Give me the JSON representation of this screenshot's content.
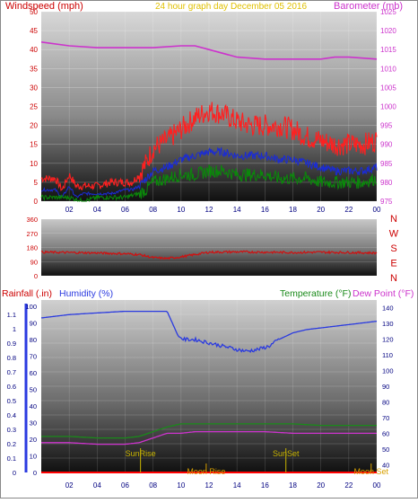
{
  "header": {
    "left_title": "Windspeed (mph)",
    "center_title": "24 hour graph day   December 05 2016",
    "right_title": "Barometer (mb)"
  },
  "labels_bottom": {
    "rainfall": "Rainfall (.in)",
    "humidity": "Humidity (%)",
    "temperature": "Temperature (°F)",
    "dewpoint": "Dew Point (°F)"
  },
  "colors": {
    "windspeed": "#ff2020",
    "windavg": "#1a2bd6",
    "windlow": "#0a8a0a",
    "barometer": "#cc33cc",
    "direction": "#d01010",
    "humidity": "#2a3ae0",
    "temperature": "#1a8a1a",
    "dewpoint": "#cc33cc",
    "rain": "#ff0000",
    "sun": "#c8b400",
    "moon": "#d8a000",
    "title_yellow": "#e0c000",
    "left_axis_red": "#cc0000",
    "right_axis_magenta": "#cc33cc"
  },
  "chart_data": [
    {
      "type": "line",
      "name_hint": "wind-barometer",
      "x_ticks": [
        "02",
        "04",
        "06",
        "08",
        "10",
        "12",
        "14",
        "16",
        "18",
        "20",
        "22",
        "00"
      ],
      "y_left_ticks": [
        "0",
        "5",
        "10",
        "15",
        "20",
        "25",
        "30",
        "35",
        "40",
        "45",
        "50"
      ],
      "y_right_ticks": [
        "975",
        "980",
        "985",
        "990",
        "995",
        "1000",
        "1005",
        "1010",
        "1015",
        "1020",
        "1025"
      ],
      "ylim_left": [
        0,
        50
      ],
      "ylim_right": [
        975,
        1025
      ],
      "xlim": [
        0,
        24
      ],
      "series": [
        {
          "name": "Windspeed (mph)",
          "key": "windspeed",
          "axis": "left",
          "x": [
            0,
            1,
            1.5,
            2,
            2.5,
            3,
            4,
            5,
            6,
            6.5,
            7,
            7.5,
            8,
            9,
            10,
            11,
            12,
            13,
            14,
            15,
            16,
            17,
            18,
            19,
            20,
            21,
            22,
            23,
            24
          ],
          "y": [
            6,
            6,
            3,
            7,
            4,
            4,
            4,
            5,
            5,
            5,
            7,
            10,
            14,
            16,
            19,
            22,
            24,
            23,
            21,
            20,
            20,
            20,
            19,
            17,
            16,
            15,
            15,
            15,
            16
          ]
        },
        {
          "name": "Wind average",
          "key": "windavg",
          "axis": "left",
          "x": [
            0,
            1,
            1.5,
            2,
            2.5,
            3,
            4,
            5,
            6,
            6.5,
            7,
            7.5,
            8,
            9,
            10,
            11,
            12,
            13,
            14,
            15,
            16,
            17,
            18,
            19,
            20,
            21,
            22,
            23,
            24
          ],
          "y": [
            3,
            3,
            1,
            4,
            1,
            2,
            2,
            2,
            3,
            3,
            4,
            6,
            8,
            9,
            11,
            12,
            13,
            13,
            12,
            12,
            12,
            11,
            11,
            10,
            9,
            8,
            8,
            8,
            9
          ]
        },
        {
          "name": "Wind low",
          "key": "windlow",
          "axis": "left",
          "x": [
            0,
            1,
            2,
            3,
            4,
            5,
            6,
            7,
            7.5,
            8,
            9,
            10,
            11,
            12,
            13,
            14,
            15,
            16,
            17,
            18,
            19,
            20,
            21,
            22,
            23,
            24
          ],
          "y": [
            1,
            1,
            1,
            0,
            1,
            1,
            1,
            2,
            3,
            5,
            6,
            7,
            7,
            8,
            8,
            7,
            7,
            7,
            6,
            6,
            6,
            5,
            5,
            5,
            5,
            6
          ]
        },
        {
          "name": "Barometer (mb)",
          "key": "barometer",
          "axis": "right",
          "x": [
            0,
            2,
            4,
            6,
            8,
            10,
            11,
            12,
            14,
            16,
            18,
            20,
            21,
            22,
            24
          ],
          "y": [
            1017,
            1016,
            1015.5,
            1015.5,
            1015.5,
            1016,
            1016,
            1015,
            1013,
            1012.5,
            1012.5,
            1012.5,
            1013,
            1013,
            1012.5
          ]
        }
      ]
    },
    {
      "type": "line",
      "name_hint": "wind-direction",
      "y_ticks": [
        "360",
        "270",
        "180",
        "90",
        "0"
      ],
      "compass": [
        "N",
        "W",
        "S",
        "E",
        "N"
      ],
      "ylim": [
        0,
        360
      ],
      "xlim": [
        0,
        24
      ],
      "series": [
        {
          "name": "Wind direction",
          "key": "direction",
          "x": [
            0,
            2,
            4,
            6,
            7,
            8,
            9,
            10,
            11,
            12,
            14,
            16,
            18,
            20,
            22,
            24
          ],
          "y": [
            150,
            148,
            145,
            140,
            135,
            115,
            110,
            120,
            135,
            150,
            152,
            150,
            148,
            150,
            148,
            145
          ]
        }
      ]
    },
    {
      "type": "line",
      "name_hint": "rain-humidity-temp",
      "x_ticks": [
        "02",
        "04",
        "06",
        "08",
        "10",
        "12",
        "14",
        "16",
        "18",
        "20",
        "22",
        "00"
      ],
      "y_rain_ticks": [
        "0",
        "0.1",
        "0.2",
        "0.3",
        "0.4",
        "0.5",
        "0.6",
        "0.7",
        "0.8",
        "0.9",
        "1",
        "1.1"
      ],
      "y_hum_ticks": [
        "0",
        "10",
        "20",
        "30",
        "40",
        "50",
        "60",
        "70",
        "80",
        "90",
        "100"
      ],
      "y_temp_ticks": [
        "40",
        "50",
        "60",
        "70",
        "80",
        "90",
        "100",
        "110",
        "120",
        "130",
        "140"
      ],
      "ylim_rain": [
        0,
        1.2
      ],
      "ylim_hum": [
        0,
        100
      ],
      "ylim_temp": [
        35,
        145
      ],
      "xlim": [
        0,
        24
      ],
      "annotations": [
        {
          "label": "SunRise",
          "x": 7.1,
          "kind": "sun",
          "row": "top"
        },
        {
          "label": "SunSet",
          "x": 17.5,
          "kind": "sun",
          "row": "top"
        },
        {
          "label": "Moon Rise",
          "x": 11.8,
          "kind": "moon",
          "row": "bottom"
        },
        {
          "label": "Moon Set",
          "x": 23.6,
          "kind": "moon",
          "row": "bottom"
        }
      ],
      "series": [
        {
          "name": "Humidity (%)",
          "key": "humidity",
          "axis": "hum",
          "x": [
            0,
            2,
            4,
            6,
            8,
            9,
            9.8,
            10.2,
            11,
            12,
            13,
            14,
            14.7,
            15.5,
            16.3,
            17,
            18,
            19,
            20,
            22,
            24
          ],
          "y": [
            93,
            95,
            96,
            97,
            97,
            97,
            82,
            80,
            80,
            78,
            76,
            74,
            73,
            74,
            76,
            80,
            84,
            86,
            87,
            89,
            91
          ]
        },
        {
          "name": "Temperature (°F)",
          "key": "temperature",
          "axis": "temp",
          "x": [
            0,
            2,
            4,
            6,
            7,
            8,
            9,
            10,
            11,
            12,
            14,
            16,
            18,
            20,
            22,
            24
          ],
          "y": [
            58,
            58,
            57,
            57,
            58,
            61,
            64,
            66,
            66,
            66,
            66,
            66,
            66,
            65,
            65,
            65
          ]
        },
        {
          "name": "Dew Point (°F)",
          "key": "dewpoint",
          "axis": "temp",
          "x": [
            0,
            2,
            4,
            6,
            7,
            8,
            9,
            10,
            11,
            12,
            14,
            16,
            18,
            20,
            22,
            24
          ],
          "y": [
            54,
            54,
            53,
            53,
            54,
            57,
            60,
            60,
            61,
            61,
            61,
            61,
            60,
            60,
            60,
            60
          ]
        },
        {
          "name": "Rainfall (.in)",
          "key": "rain",
          "axis": "rain",
          "x": [
            0,
            24
          ],
          "y": [
            0,
            0
          ]
        }
      ]
    }
  ]
}
